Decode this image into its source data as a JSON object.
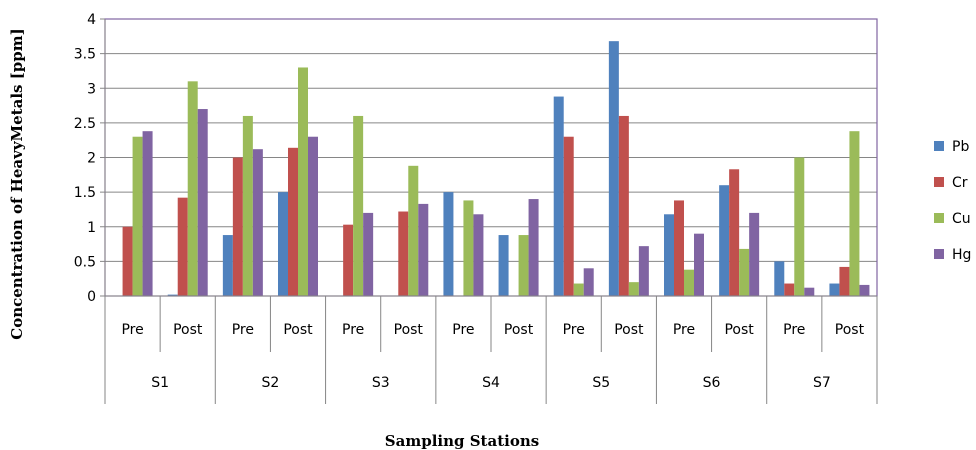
{
  "chart_data": {
    "type": "bar",
    "xlabel": "Sampling Stations",
    "ylabel": "Concentration of HeavyMetals [ppm]",
    "ylim": [
      0,
      4
    ],
    "yticks": [
      "0",
      "0.5",
      "1",
      "1.5",
      "2",
      "2.5",
      "3",
      "3.5",
      "4"
    ],
    "legend_position": "right",
    "grid": true,
    "groups": [
      "S1",
      "S2",
      "S3",
      "S4",
      "S5",
      "S6",
      "S7"
    ],
    "subcategories": [
      "Pre",
      "Post"
    ],
    "categories": [
      "S1 Pre",
      "S1 Post",
      "S2 Pre",
      "S2 Post",
      "S3 Pre",
      "S3 Post",
      "S4 Pre",
      "S4 Post",
      "S5 Pre",
      "S5 Post",
      "S6 Pre",
      "S6 Post",
      "S7 Pre",
      "S7 Post"
    ],
    "series": [
      {
        "name": "Pb",
        "color": "#4F81BD",
        "values": [
          0,
          0.02,
          0.88,
          1.5,
          0,
          0,
          1.5,
          0.88,
          2.88,
          3.68,
          1.18,
          1.6,
          0.5,
          0.18
        ]
      },
      {
        "name": "Cr",
        "color": "#C0504D",
        "values": [
          1.0,
          1.42,
          2.0,
          2.14,
          1.03,
          1.22,
          0,
          0,
          2.3,
          2.6,
          1.38,
          1.83,
          0.18,
          0.42
        ]
      },
      {
        "name": "Cu",
        "color": "#9BBB59",
        "values": [
          2.3,
          3.1,
          2.6,
          3.3,
          2.6,
          1.88,
          1.38,
          0.88,
          0.18,
          0.2,
          0.38,
          0.68,
          2.0,
          2.38
        ]
      },
      {
        "name": "Hg",
        "color": "#8064A2",
        "values": [
          2.38,
          2.7,
          2.12,
          2.3,
          1.2,
          1.33,
          1.18,
          1.4,
          0.4,
          0.72,
          0.9,
          1.2,
          0.12,
          0.16
        ]
      }
    ]
  },
  "colors": {
    "plot_border": "#8064A2",
    "gridline": "#868686",
    "axis": "#868686"
  }
}
